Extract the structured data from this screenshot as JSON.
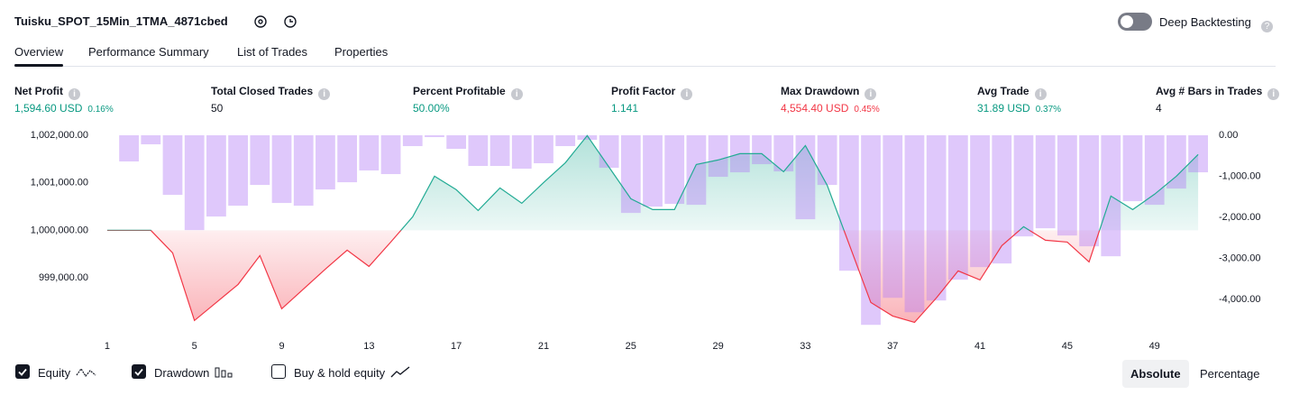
{
  "header": {
    "title": "Tuisku_SPOT_15Min_1TMA_4871cbed",
    "toggle": "Deep Backtesting"
  },
  "tabs": [
    "Overview",
    "Performance Summary",
    "List of Trades",
    "Properties"
  ],
  "active_tab": 0,
  "metrics": [
    {
      "label": "Net Profit",
      "value": "1,594.60 USD",
      "percent": "0.16%",
      "color": "#089981"
    },
    {
      "label": "Total Closed Trades",
      "value": "50",
      "color": "#131722"
    },
    {
      "label": "Percent Profitable",
      "value": "50.00%",
      "color": "#089981"
    },
    {
      "label": "Profit Factor",
      "value": "1.141",
      "color": "#089981"
    },
    {
      "label": "Max Drawdown",
      "value": "4,554.40 USD",
      "percent": "0.45%",
      "color": "#f23645"
    },
    {
      "label": "Avg Trade",
      "value": "31.89 USD",
      "percent": "0.37%",
      "color": "#089981"
    },
    {
      "label": "Avg # Bars in Trades",
      "value": "4",
      "color": "#131722"
    }
  ],
  "chart_data": {
    "type": "combo",
    "x": [
      1,
      2,
      3,
      4,
      5,
      6,
      7,
      8,
      9,
      10,
      11,
      12,
      13,
      14,
      15,
      16,
      17,
      18,
      19,
      20,
      21,
      22,
      23,
      24,
      25,
      26,
      27,
      28,
      29,
      30,
      31,
      32,
      33,
      34,
      35,
      36,
      37,
      38,
      39,
      40,
      41,
      42,
      43,
      44,
      45,
      46,
      47,
      48,
      49,
      50,
      51
    ],
    "xlim": [
      0.55,
      51.45
    ],
    "xticks": [
      1,
      5,
      9,
      13,
      17,
      21,
      25,
      29,
      33,
      37,
      41,
      45,
      49
    ],
    "ylim": [
      997920,
      1002000
    ],
    "yticks": [
      {
        "value": 999000,
        "label": "999,000.00"
      },
      {
        "value": 1000000,
        "label": "1,000,000.00"
      },
      {
        "value": 1001000,
        "label": "1,001,000.00"
      },
      {
        "value": 1002000,
        "label": "1,002,000.00"
      }
    ],
    "y2lim": [
      -4720,
      0
    ],
    "y2ticks": [
      {
        "value": 0,
        "label": "0.00"
      },
      {
        "value": -1000,
        "label": "-1,000.00"
      },
      {
        "value": -2000,
        "label": "-2,000.00"
      },
      {
        "value": -3000,
        "label": "-3,000.00"
      },
      {
        "value": -4000,
        "label": "-4,000.00"
      }
    ],
    "series": [
      {
        "name": "Equity",
        "type": "area",
        "color": "#22ab94",
        "negative_color": "#f23645",
        "visible": true,
        "values": [
          1000000,
          1000000,
          1000000,
          999526,
          998102,
          998482,
          998861,
          999469,
          998349,
          998767,
          999184,
          999583,
          999241,
          999753,
          1000285,
          1001139,
          1000854,
          1000417,
          1000892,
          1000569,
          1001006,
          1001423,
          1001992,
          1001328,
          1000664,
          1000436,
          1000436,
          1001385,
          1001480,
          1001613,
          1001613,
          1001233,
          1001784,
          1000949,
          999715,
          998482,
          998197,
          998064,
          998577,
          999146,
          998956,
          999677,
          1000076,
          999791,
          999753,
          999336,
          1000721,
          1000436,
          1000759,
          1001139,
          1001595
        ]
      },
      {
        "name": "Drawdown",
        "type": "bar",
        "axis": "y2",
        "color": "#b27cf5",
        "visible": true,
        "values": [
          0,
          -637,
          -220,
          -1451,
          -2308,
          -1978,
          -1714,
          -1209,
          -1648,
          -1714,
          -1319,
          -1143,
          -857,
          -945,
          -264,
          -44,
          -330,
          -747,
          -747,
          -813,
          -681,
          -264,
          -110,
          -791,
          -1890,
          -1736,
          -1670,
          -1692,
          -1011,
          -901,
          -703,
          -879,
          -2044,
          -1209,
          -3297,
          -4615,
          -3956,
          -4308,
          -4022,
          -3516,
          -3209,
          -3121,
          -2462,
          -2264,
          -2440,
          -2703,
          -2945,
          -1604,
          -1692,
          -1297,
          -901
        ]
      }
    ]
  },
  "footer": {
    "extra_option": "Buy & hold equity",
    "modes": [
      "Absolute",
      "Percentage"
    ],
    "active_mode": 0
  }
}
